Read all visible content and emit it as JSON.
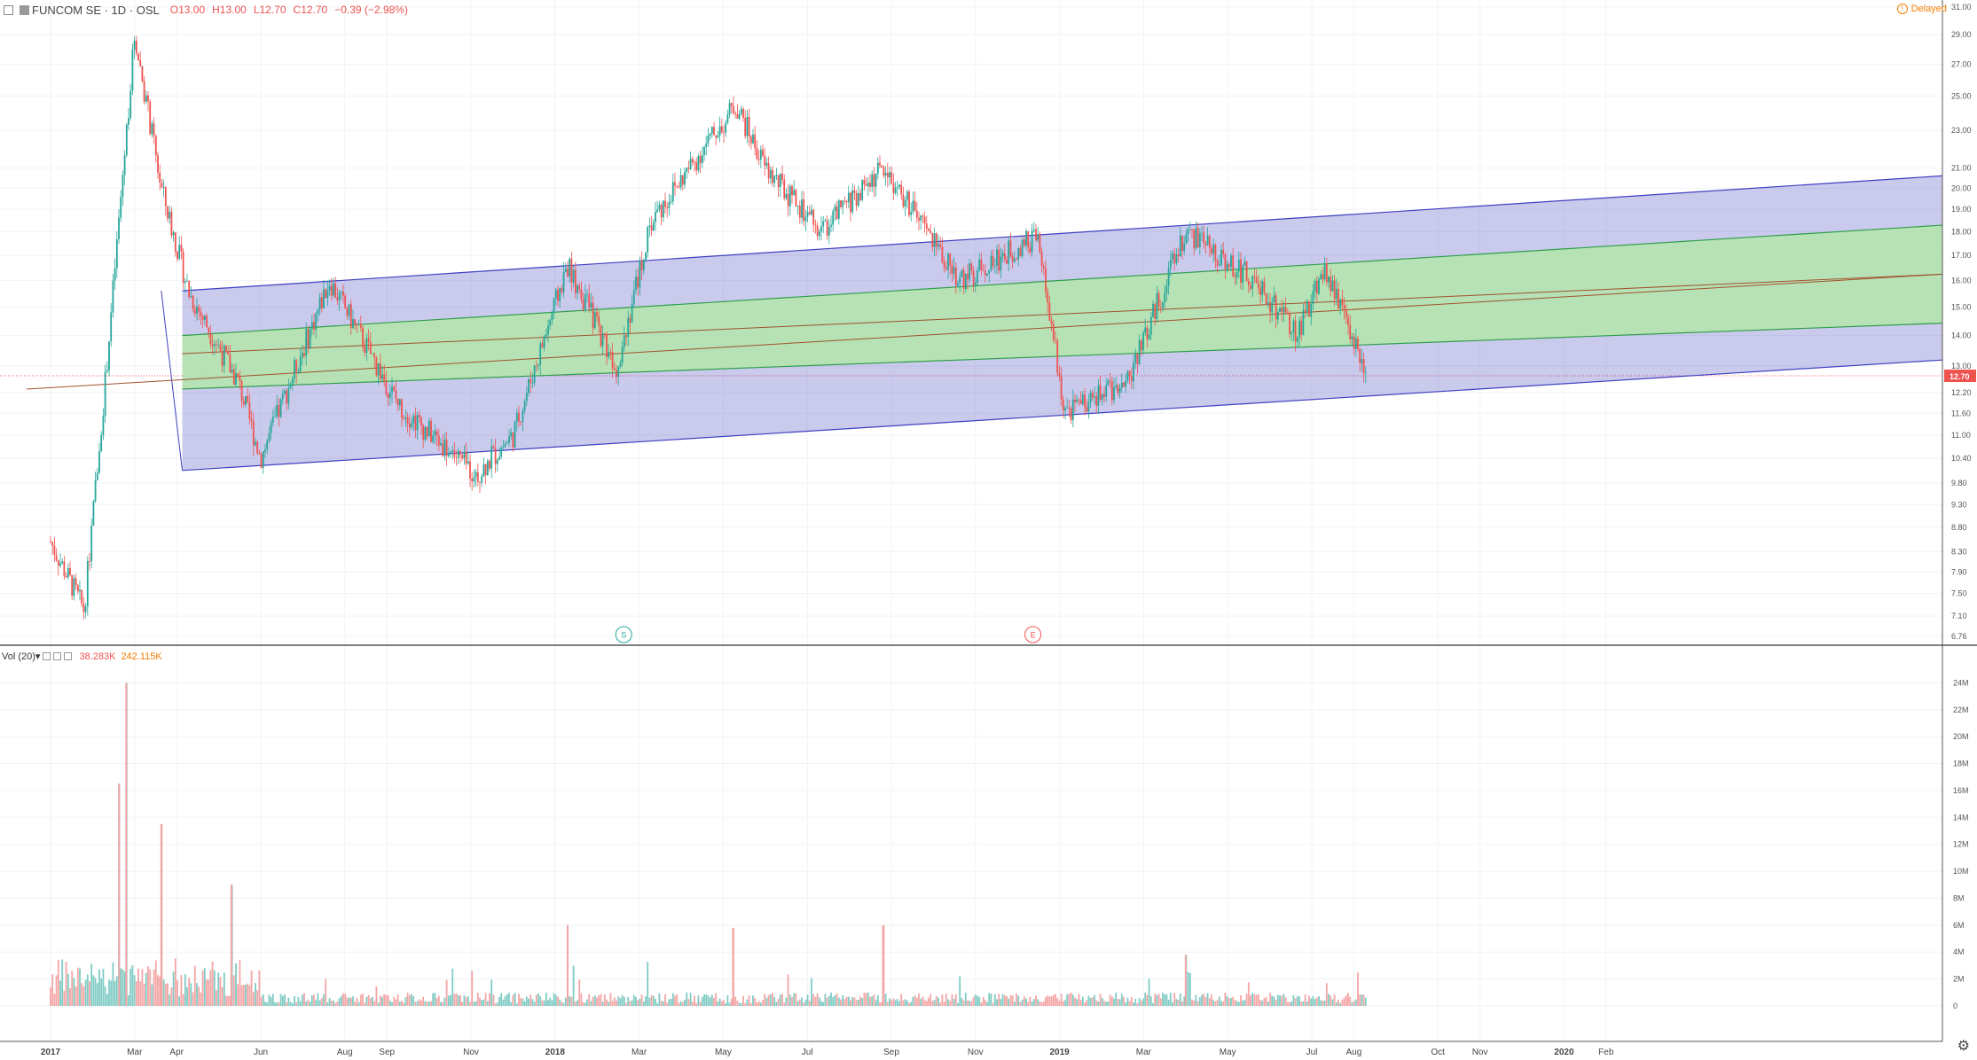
{
  "header": {
    "symbol": "FUNCOM SE · 1D · OSL",
    "open": "O13.00",
    "high": "H13.00",
    "low": "L12.70",
    "close": "C12.70",
    "change": "−0.39 (−2.98%)",
    "delayed": "Delayed"
  },
  "volume_header": {
    "label": "Vol (20)",
    "value1": "38.283K",
    "value2": "242.115K"
  },
  "price_axis": [
    "31.00",
    "29.00",
    "27.00",
    "25.00",
    "23.00",
    "21.00",
    "20.00",
    "19.00",
    "18.00",
    "17.00",
    "16.00",
    "15.00",
    "14.00",
    "13.00",
    "12.70",
    "12.20",
    "11.60",
    "11.00",
    "10.40",
    "9.80",
    "9.30",
    "8.80",
    "8.30",
    "7.90",
    "7.50",
    "7.10",
    "6.76"
  ],
  "current_price_label": "12.70",
  "volume_axis": [
    "24M",
    "22M",
    "20M",
    "18M",
    "16M",
    "14M",
    "12M",
    "10M",
    "8M",
    "6M",
    "4M",
    "2M",
    "0"
  ],
  "time_axis": [
    {
      "label": "2017",
      "bold": true
    },
    {
      "label": "Mar"
    },
    {
      "label": "Apr"
    },
    {
      "label": "Jun"
    },
    {
      "label": "Aug"
    },
    {
      "label": "Sep"
    },
    {
      "label": "Nov"
    },
    {
      "label": "2018",
      "bold": true
    },
    {
      "label": "Mar"
    },
    {
      "label": "May"
    },
    {
      "label": "Jul"
    },
    {
      "label": "Sep"
    },
    {
      "label": "Nov"
    },
    {
      "label": "2019",
      "bold": true
    },
    {
      "label": "Mar"
    },
    {
      "label": "May"
    },
    {
      "label": "Jul"
    },
    {
      "label": "Aug"
    },
    {
      "label": "Oct"
    },
    {
      "label": "Nov"
    },
    {
      "label": "2020",
      "bold": true
    },
    {
      "label": "Feb"
    }
  ],
  "event_markers": [
    {
      "label": "S",
      "color": "#26a69a"
    },
    {
      "label": "E",
      "color": "#ef5350"
    }
  ],
  "colors": {
    "up": "#26a69a",
    "down": "#ef5350",
    "up_vol": "#80cbc4",
    "down_vol": "#f4a6a6",
    "outer_channel": "#3f3fc0",
    "inner_channel": "#2e9e4a",
    "median": "#a0522d",
    "price_line": "#ef5350"
  },
  "chart_data": {
    "type": "candlestick",
    "symbol": "FUNCOM SE",
    "interval": "1D",
    "exchange": "OSL",
    "y_scale": "log",
    "ylim": [
      6.76,
      31.0
    ],
    "last_close": 12.7,
    "key_points": [
      {
        "date": "2017-01",
        "price": 8.5
      },
      {
        "date": "2017-01-25",
        "price": 7.2
      },
      {
        "date": "2017-02-10",
        "price": 12.5
      },
      {
        "date": "2017-03-01",
        "price": 29.0
      },
      {
        "date": "2017-03-20",
        "price": 20.0
      },
      {
        "date": "2017-04-10",
        "price": 15.5
      },
      {
        "date": "2017-05-15",
        "price": 12.5
      },
      {
        "date": "2017-06-01",
        "price": 10.4
      },
      {
        "date": "2017-07-20",
        "price": 16.0
      },
      {
        "date": "2017-09-10",
        "price": 11.8
      },
      {
        "date": "2017-11-05",
        "price": 10.0
      },
      {
        "date": "2017-12-01",
        "price": 11.0
      },
      {
        "date": "2018-01-10",
        "price": 16.6
      },
      {
        "date": "2018-02-15",
        "price": 13.0
      },
      {
        "date": "2018-03-10",
        "price": 18.5
      },
      {
        "date": "2018-05-10",
        "price": 24.5
      },
      {
        "date": "2018-06-01",
        "price": 21.0
      },
      {
        "date": "2018-07-10",
        "price": 18.0
      },
      {
        "date": "2018-08-25",
        "price": 21.0
      },
      {
        "date": "2018-10-20",
        "price": 16.0
      },
      {
        "date": "2018-12-15",
        "price": 17.8
      },
      {
        "date": "2019-01-05",
        "price": 11.6
      },
      {
        "date": "2019-02-20",
        "price": 12.6
      },
      {
        "date": "2019-04-01",
        "price": 18.0
      },
      {
        "date": "2019-05-20",
        "price": 16.0
      },
      {
        "date": "2019-06-20",
        "price": 14.0
      },
      {
        "date": "2019-07-10",
        "price": 16.5
      },
      {
        "date": "2019-08-10",
        "price": 12.7
      }
    ],
    "volume_spikes": [
      {
        "date": "2017-02-25",
        "volume": 24.0
      },
      {
        "date": "2017-02-20",
        "volume": 16.5
      },
      {
        "date": "2017-03-20",
        "volume": 13.5
      },
      {
        "date": "2017-05-10",
        "volume": 9.0
      },
      {
        "date": "2018-01-10",
        "volume": 6.0
      },
      {
        "date": "2018-05-08",
        "volume": 5.8
      },
      {
        "date": "2018-08-25",
        "volume": 6.0
      },
      {
        "date": "2019-04-01",
        "volume": 3.8
      }
    ],
    "volume_units": "M",
    "regression_channel": {
      "start_date": "2017-04-05",
      "end_date": "2020-04-01",
      "median": [
        13.4,
        15.8
      ],
      "inner_upper": [
        14.0,
        17.6
      ],
      "inner_lower": [
        12.3,
        14.1
      ],
      "outer_upper": [
        15.6,
        19.8
      ],
      "outer_lower": [
        10.1,
        12.7
      ]
    }
  }
}
